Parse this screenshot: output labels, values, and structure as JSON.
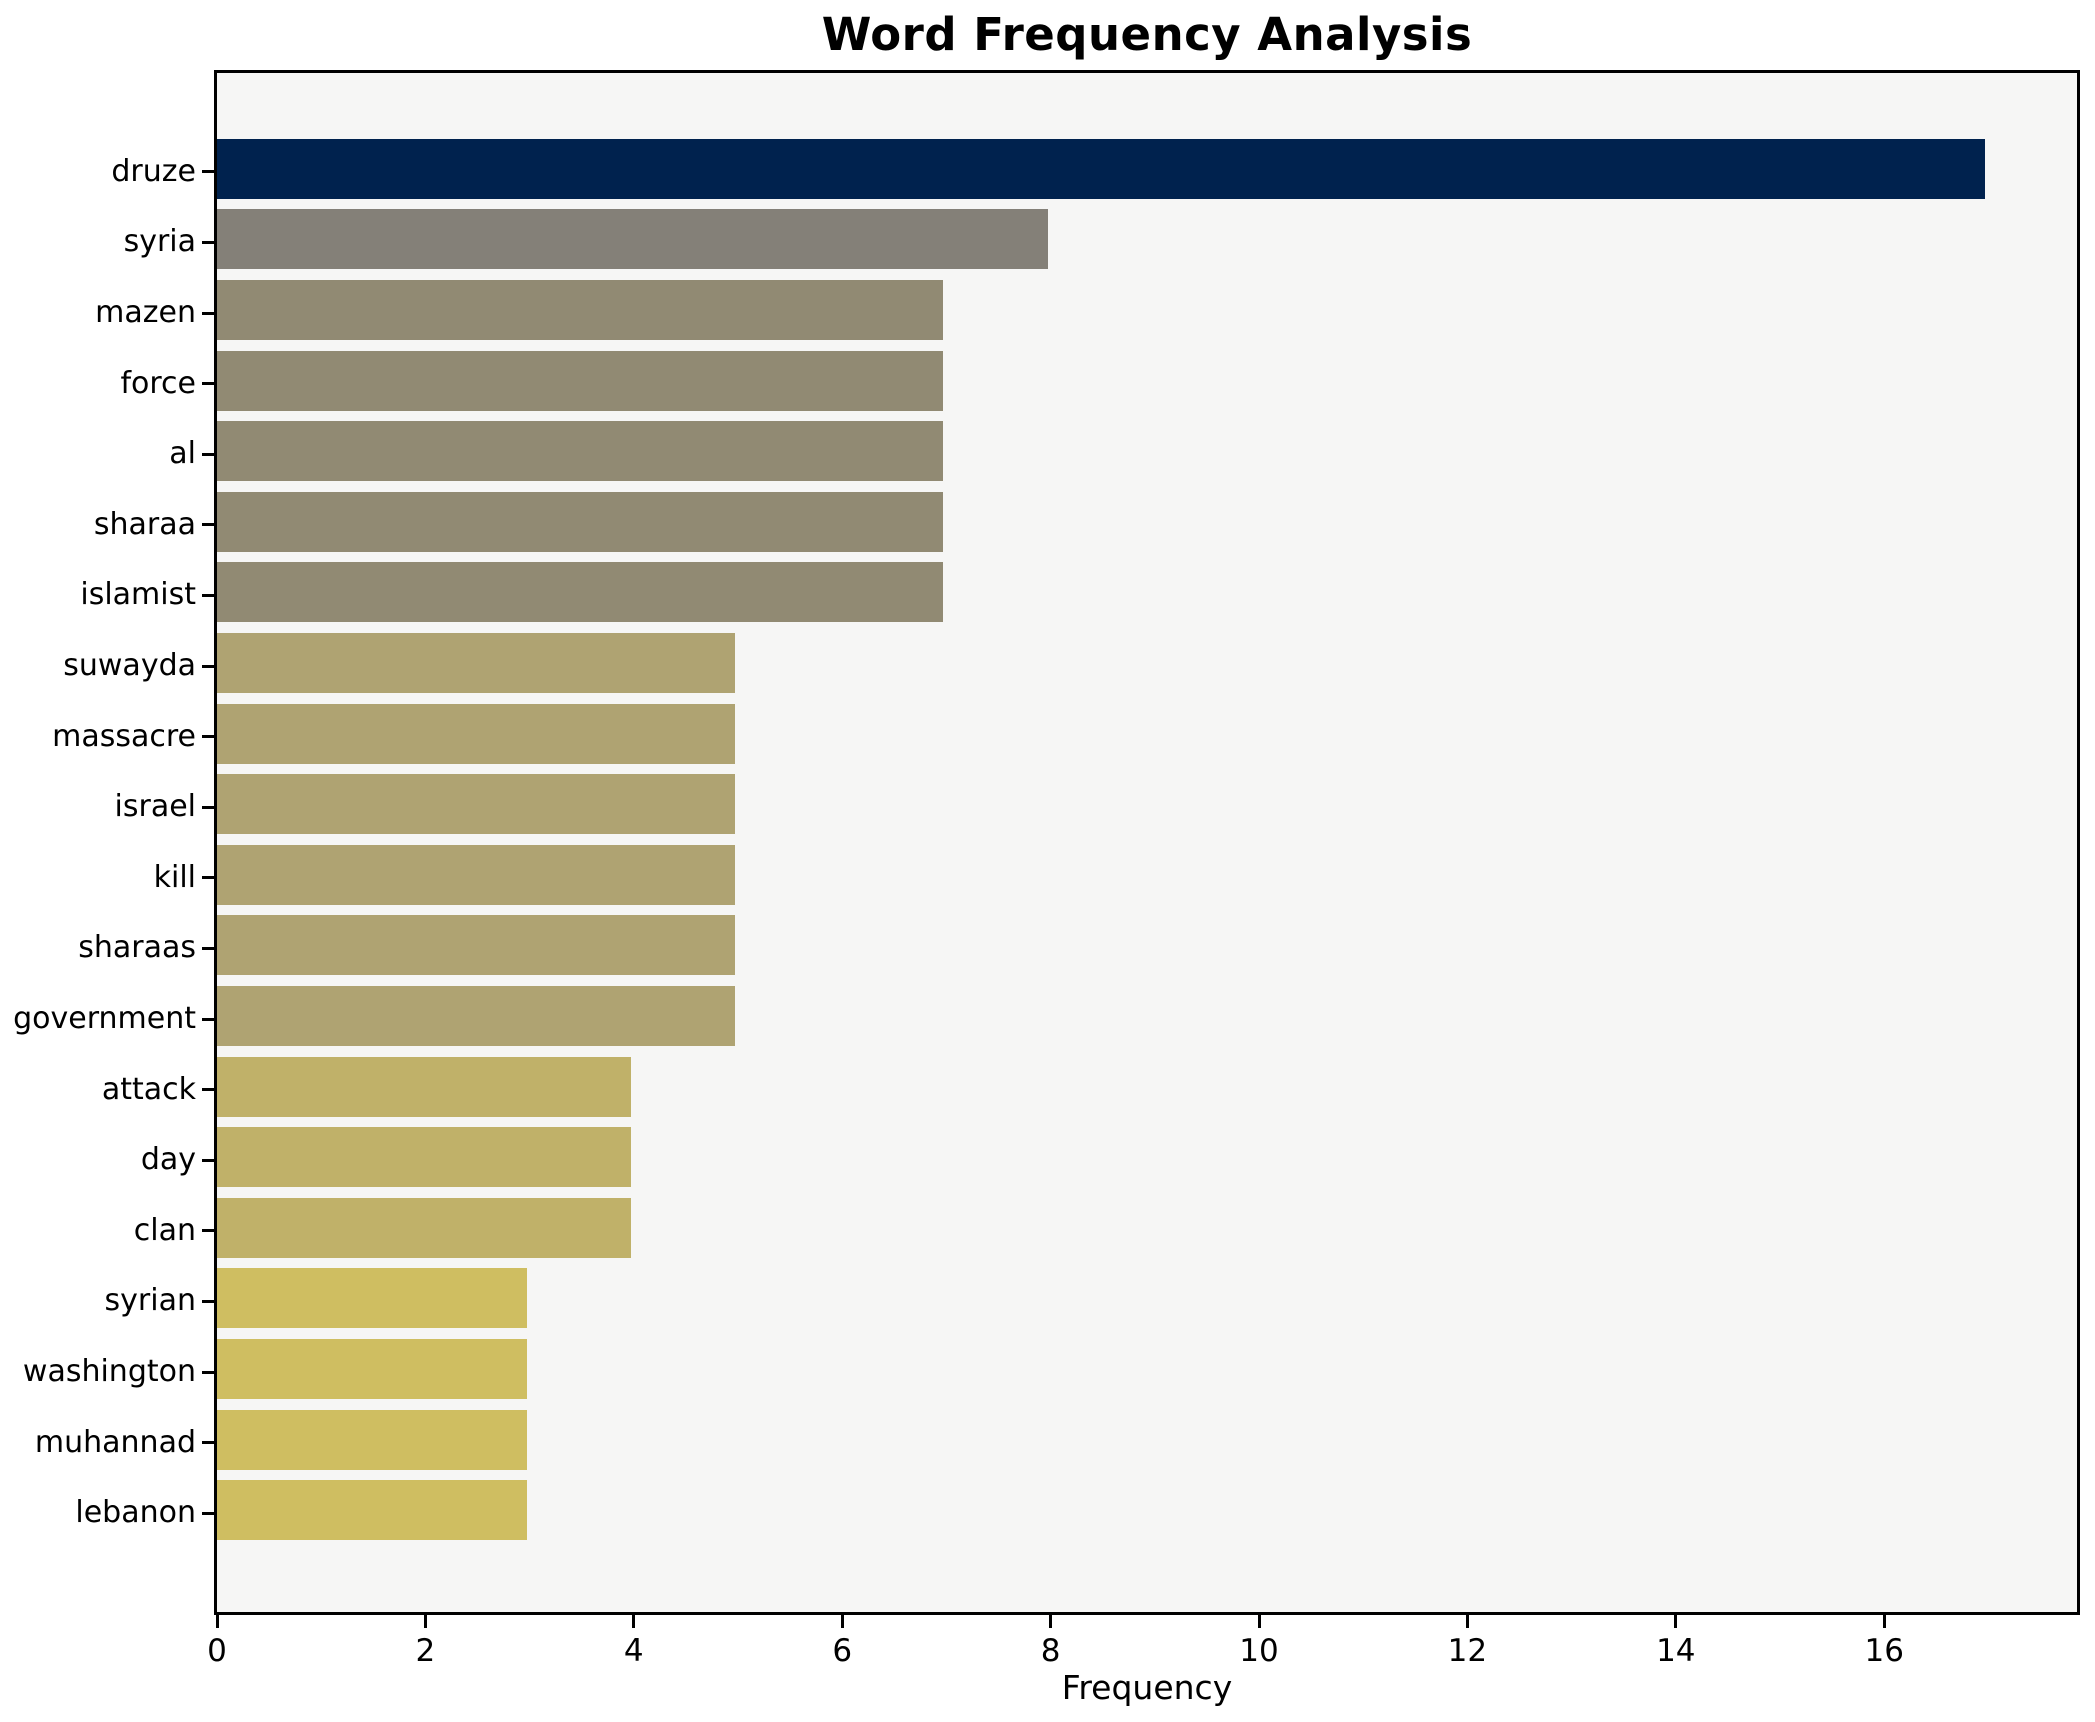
{
  "title": "Word Frequency Analysis",
  "chart_data": {
    "type": "bar",
    "orientation": "horizontal",
    "title": "Word Frequency Analysis",
    "xlabel": "Frequency",
    "ylabel": "",
    "categories": [
      "druze",
      "syria",
      "mazen",
      "force",
      "al",
      "sharaa",
      "islamist",
      "suwayda",
      "massacre",
      "israel",
      "kill",
      "sharaas",
      "government",
      "attack",
      "day",
      "clan",
      "syrian",
      "washington",
      "muhannad",
      "lebanon"
    ],
    "values": [
      17,
      8,
      7,
      7,
      7,
      7,
      7,
      5,
      5,
      5,
      5,
      5,
      5,
      4,
      4,
      4,
      3,
      3,
      3,
      3
    ],
    "bar_colors": [
      "#00224e",
      "#848078",
      "#918a73",
      "#918a73",
      "#918a73",
      "#918a73",
      "#918a73",
      "#afa372",
      "#afa372",
      "#afa372",
      "#afa372",
      "#afa372",
      "#afa372",
      "#c0b169",
      "#c0b169",
      "#c0b169",
      "#cfbe61",
      "#cfbe61",
      "#cfbe61",
      "#cfbe61"
    ],
    "x_ticks": [
      0,
      2,
      4,
      6,
      8,
      10,
      12,
      14,
      16
    ],
    "xlim": [
      0,
      17.85
    ],
    "grid": false,
    "legend": false,
    "plot_bg": "#f6f6f5",
    "figure_bg": "#ffffff",
    "spine_color": "#000000",
    "text_color": "#000000"
  }
}
